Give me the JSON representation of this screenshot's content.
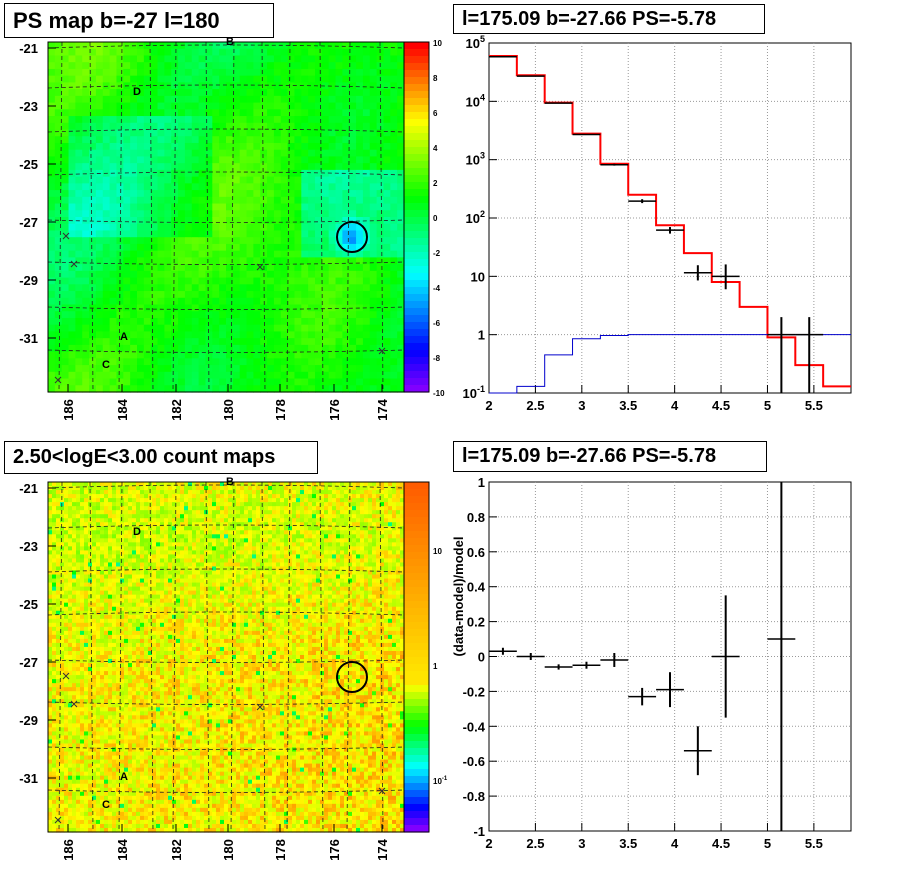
{
  "titles": {
    "tl": "PS map b=-27 l=180",
    "tr": "l=175.09 b=-27.66 PS=-5.78",
    "bl": "2.50<logE<3.00 count maps",
    "br": "l=175.09 b=-27.66 PS=-5.78"
  },
  "chart_data": [
    {
      "type": "heatmap",
      "title": "PS map b=-27 l=180",
      "x_ticks": [
        "186",
        "184",
        "182",
        "180",
        "178",
        "176",
        "174"
      ],
      "y_ticks": [
        "-21",
        "-23",
        "-25",
        "-27",
        "-29",
        "-31"
      ],
      "colorbar_ticks": [
        "10",
        "8",
        "6",
        "4",
        "2",
        "0",
        "-2",
        "-4",
        "-6",
        "-8",
        "-10"
      ],
      "zlim": [
        -10,
        10
      ],
      "source_labels": [
        "B",
        "D",
        "A",
        "C"
      ],
      "circle_label_position": "l=175.09 b=-27.66",
      "grid": true
    },
    {
      "type": "line",
      "title": "l=175.09 b=-27.66 PS=-5.78",
      "log_y": true,
      "xlim": [
        2,
        5.9
      ],
      "ylim": [
        0.1,
        100000
      ],
      "x_ticks": [
        "2",
        "2.5",
        "3",
        "3.5",
        "4",
        "4.5",
        "5",
        "5.5"
      ],
      "y_ticks": [
        "10^-1",
        "1",
        "10",
        "10^2",
        "10^3",
        "10^4",
        "10^5"
      ],
      "series": [
        {
          "kind": "data",
          "x": [
            2.15,
            2.45,
            2.75,
            3.05,
            3.35,
            3.65,
            3.95,
            4.25,
            4.55,
            5.15,
            5.45
          ],
          "y": [
            58000,
            27000,
            9300,
            2700,
            820,
            195,
            62,
            11.5,
            10,
            1,
            1
          ],
          "yerr_low": [
            500,
            300,
            100,
            50,
            30,
            15,
            8,
            3,
            4,
            0.9,
            0.9
          ],
          "yerr_high": [
            500,
            300,
            100,
            50,
            30,
            15,
            8,
            4,
            6,
            1.0,
            1.0
          ]
        },
        {
          "kind": "model",
          "color": "#ff0000",
          "edges": [
            2.0,
            2.3,
            2.6,
            2.9,
            3.2,
            3.5,
            3.8,
            4.1,
            4.4,
            4.7,
            5.0,
            5.3,
            5.6,
            5.9
          ],
          "values": [
            60000,
            28000,
            9500,
            2800,
            850,
            250,
            75,
            25,
            8,
            3,
            0.9,
            0.3,
            0.13
          ]
        },
        {
          "kind": "model",
          "color": "#0000cc",
          "edges": [
            2.0,
            2.3,
            2.6,
            2.9,
            3.2,
            3.5,
            3.8,
            4.1,
            4.4,
            4.7,
            5.0,
            5.3,
            5.6,
            5.9
          ],
          "values": [
            0.1,
            0.13,
            0.45,
            0.85,
            0.97,
            1.0,
            1.0,
            1.0,
            1.0,
            1.0,
            1.0,
            1.0,
            1.0
          ]
        }
      ],
      "grid": true
    },
    {
      "type": "heatmap",
      "title": "2.50<logE<3.00 count maps",
      "x_ticks": [
        "186",
        "184",
        "182",
        "180",
        "178",
        "176",
        "174"
      ],
      "y_ticks": [
        "-21",
        "-23",
        "-25",
        "-27",
        "-29",
        "-31"
      ],
      "colorbar_ticks": [
        "10",
        "1",
        "10^-1"
      ],
      "log_z": true,
      "source_labels": [
        "B",
        "D",
        "A",
        "C"
      ],
      "grid": true
    },
    {
      "type": "scatter",
      "title": "l=175.09 b=-27.66 PS=-5.78",
      "ylabel": "(data-model)/model",
      "xlim": [
        2,
        5.9
      ],
      "ylim": [
        -1,
        1
      ],
      "x_ticks": [
        "2",
        "2.5",
        "3",
        "3.5",
        "4",
        "4.5",
        "5",
        "5.5"
      ],
      "y_ticks": [
        "1",
        "0.8",
        "0.6",
        "0.4",
        "0.2",
        "0",
        "-0.2",
        "-0.4",
        "-0.6",
        "-0.8",
        "-1"
      ],
      "x": [
        2.15,
        2.45,
        2.75,
        3.05,
        3.35,
        3.65,
        3.95,
        4.25,
        4.55,
        5.15
      ],
      "y": [
        0.03,
        0.0,
        -0.06,
        -0.05,
        -0.02,
        -0.23,
        -0.19,
        -0.54,
        0.0,
        0.1
      ],
      "yerr": [
        0.02,
        0.02,
        0.015,
        0.02,
        0.04,
        0.05,
        0.1,
        0.14,
        0.35,
        1.2
      ],
      "xerr": 0.15,
      "grid": true
    }
  ]
}
